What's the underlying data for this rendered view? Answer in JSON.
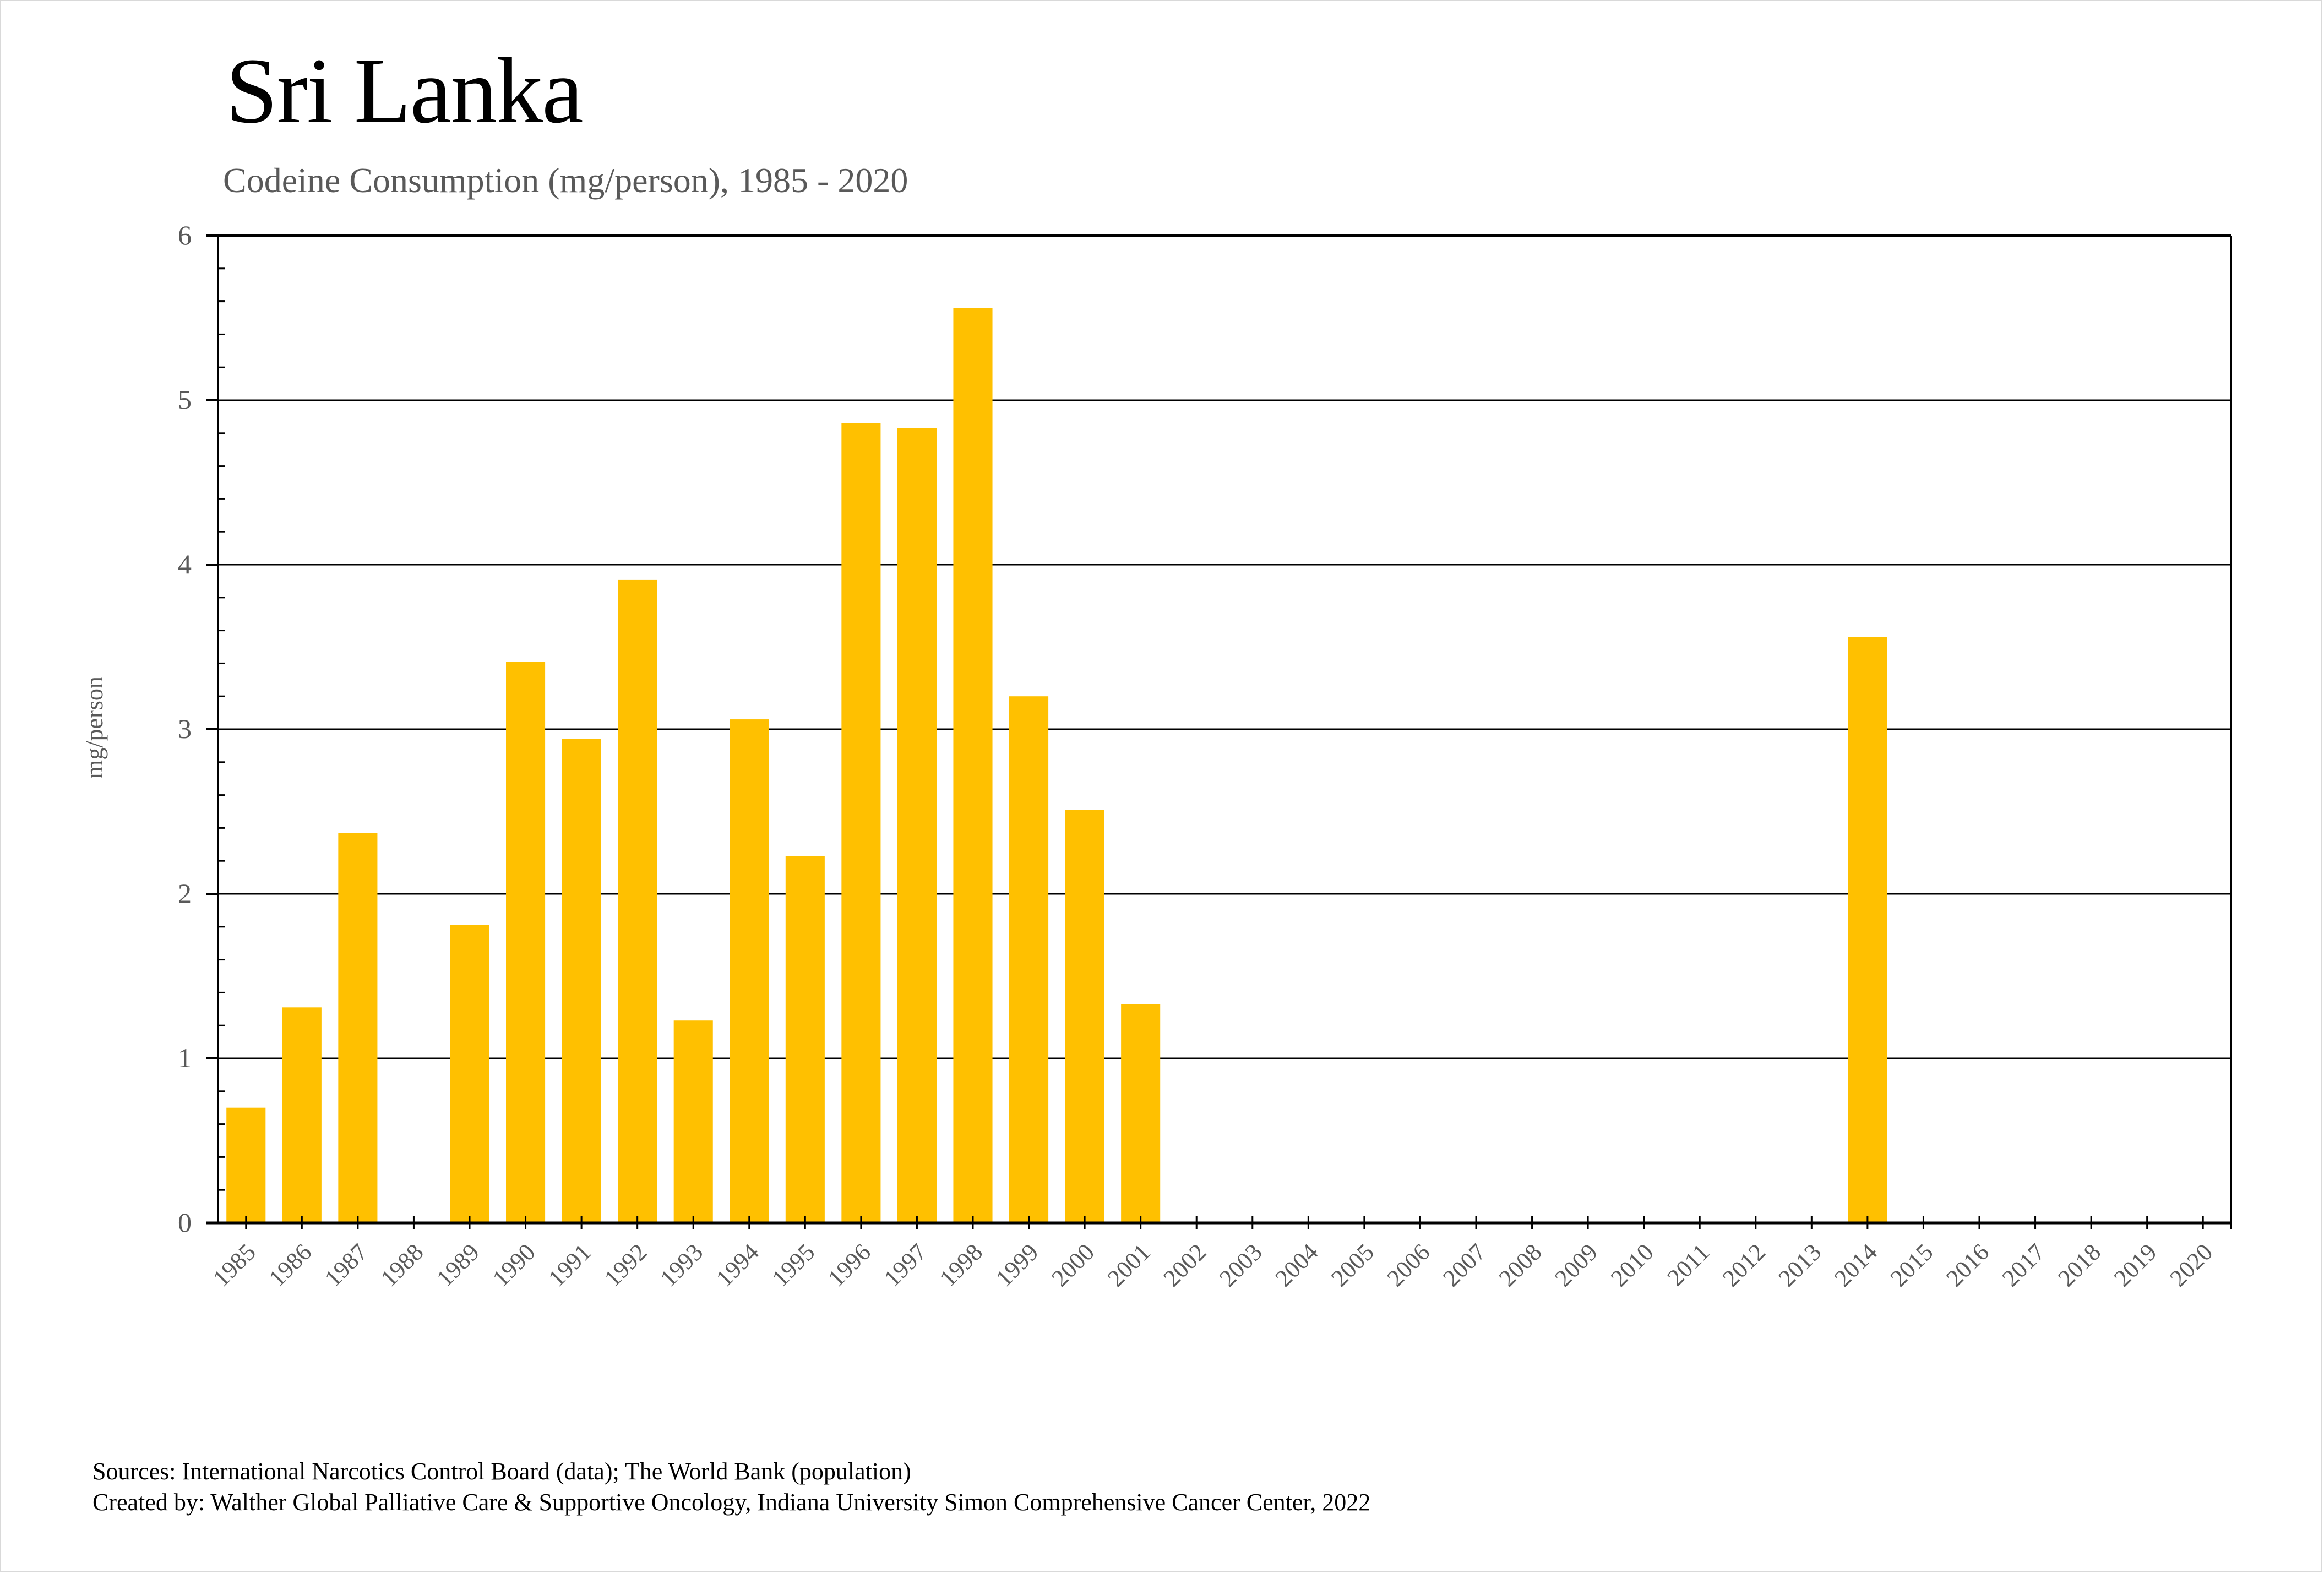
{
  "header": {
    "title": "Sri Lanka",
    "subtitle": "Codeine Consumption (mg/person), 1985 - 2020"
  },
  "footer": {
    "sources": "Sources: International Narcotics Control Board (data); The World Bank (population)",
    "created_by": "Created by: Walther Global Palliative Care & Supportive Oncology, Indiana University Simon Comprehensive Cancer Center, 2022"
  },
  "colors": {
    "bar": "#FFC000",
    "axis": "#000000",
    "label": "#595959"
  },
  "chart_data": {
    "type": "bar",
    "title": "Sri Lanka",
    "subtitle": "Codeine Consumption (mg/person), 1985 - 2020",
    "xlabel": "",
    "ylabel": "mg/person",
    "ylim": [
      0,
      6
    ],
    "yticks": [
      0,
      1,
      2,
      3,
      4,
      5,
      6
    ],
    "y_minor_step": 0.2,
    "grid": true,
    "legend": "none",
    "categories": [
      "1985",
      "1986",
      "1987",
      "1988",
      "1989",
      "1990",
      "1991",
      "1992",
      "1993",
      "1994",
      "1995",
      "1996",
      "1997",
      "1998",
      "1999",
      "2000",
      "2001",
      "2002",
      "2003",
      "2004",
      "2005",
      "2006",
      "2007",
      "2008",
      "2009",
      "2010",
      "2011",
      "2012",
      "2013",
      "2014",
      "2015",
      "2016",
      "2017",
      "2018",
      "2019",
      "2020"
    ],
    "values": [
      0.7,
      1.31,
      2.37,
      null,
      1.81,
      3.41,
      2.94,
      3.91,
      1.23,
      3.06,
      2.23,
      4.86,
      4.83,
      5.56,
      3.2,
      2.51,
      1.33,
      null,
      null,
      null,
      null,
      null,
      null,
      null,
      null,
      null,
      null,
      null,
      null,
      3.56,
      null,
      null,
      null,
      null,
      null,
      null
    ]
  }
}
